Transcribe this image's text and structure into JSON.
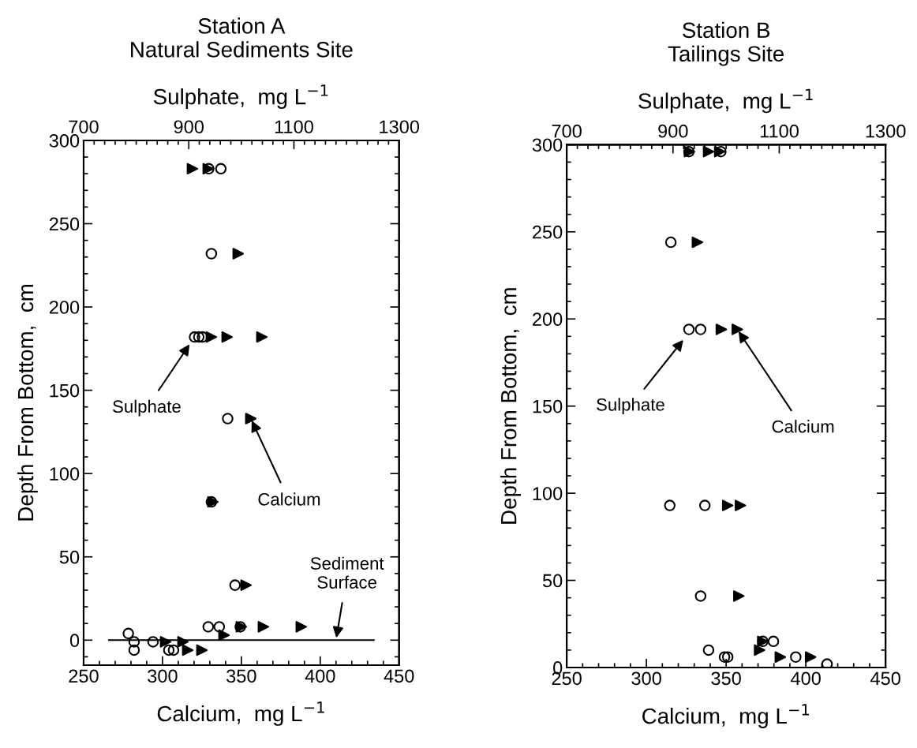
{
  "chart_data": [
    {
      "type": "scatter",
      "title": "Station A\nNatural Sediments Site",
      "xlabel": "Calcium,  mg L$^{−1}$",
      "x2label": "Sulphate,  mg L$^{−1}$",
      "ylabel": "Depth From Bottom,  cm",
      "xlim": [
        250,
        450
      ],
      "xticks": [
        250,
        300,
        350,
        400,
        450
      ],
      "x2lim": [
        700,
        1300
      ],
      "x2ticks": [
        700,
        900,
        1100,
        1300
      ],
      "ylim": [
        -15,
        300
      ],
      "yticks": [
        0,
        50,
        100,
        150,
        200,
        250,
        300
      ],
      "series": [
        {
          "axis": "x2",
          "color": "#000000",
          "marker": "circle",
          "x": [
            938,
            961,
            943,
            911,
            919,
            926,
            974,
            943,
            988,
            937,
            958,
            998,
            785,
            796,
            796,
            832,
            862,
            871
          ],
          "values": [
            283,
            283,
            232,
            182,
            182,
            182,
            133,
            83,
            33,
            8,
            8,
            8,
            4,
            -1,
            -6,
            -1,
            -6,
            -6
          ]
        },
        {
          "color": "#000000",
          "marker": "triangle",
          "x": [
            319,
            329,
            348,
            331,
            341,
            363,
            356,
            332,
            353,
            350,
            364,
            388,
            339,
            302,
            313,
            316,
            325
          ],
          "values": [
            283,
            283,
            232,
            182,
            182,
            182,
            133,
            83,
            33,
            8,
            8,
            8,
            3,
            -1,
            -1,
            -6,
            -6
          ]
        }
      ],
      "ref_lines": [
        {
          "axis": "y",
          "value": 0
        }
      ],
      "annotations": [
        "Sulphate",
        {
          "text": "Calcium",
          "x": 356,
          "y": 133
        },
        {
          "text": "Sediment\nSurface",
          "x": 410,
          "y": 0
        }
      ]
    },
    {
      "type": "scatter",
      "title": "Station B\nTailings Site",
      "xlabel": "Calcium,  mg L$^{−1}$",
      "x2label": "Sulphate,  mg L$^{−1}$",
      "ylabel": "Depth From Bottom,  cm",
      "xlim": [
        250,
        450
      ],
      "xticks": [
        250,
        300,
        350,
        400,
        450
      ],
      "x2lim": [
        700,
        1300
      ],
      "x2ticks": [
        700,
        900,
        1100,
        1300
      ],
      "ylim": [
        0,
        300
      ],
      "yticks": [
        0,
        50,
        100,
        150,
        200,
        250,
        300
      ],
      "series": [
        {
          "axis": "x2",
          "color": "#000000",
          "marker": "circle",
          "x": [
            930,
            990,
            896,
            930,
            952,
            894,
            960,
            952,
            1069,
            1089,
            967,
            997,
            1003,
            1131,
            1190
          ],
          "values": [
            296,
            296,
            244,
            194,
            194,
            93,
            93,
            41,
            15,
            15,
            10,
            6,
            6,
            6,
            2
          ]
        },
        {
          "color": "#000000",
          "marker": "triangle",
          "x": [
            327,
            339,
            346,
            332,
            347,
            357,
            351,
            359,
            358,
            373,
            371,
            384,
            403
          ],
          "values": [
            296,
            296,
            296,
            244,
            194,
            194,
            93,
            93,
            41,
            15,
            10,
            6,
            6
          ]
        }
      ],
      "annotations": [
        "Sulphate",
        {
          "text": "Calcium",
          "x": 357,
          "y": 194
        }
      ]
    }
  ]
}
